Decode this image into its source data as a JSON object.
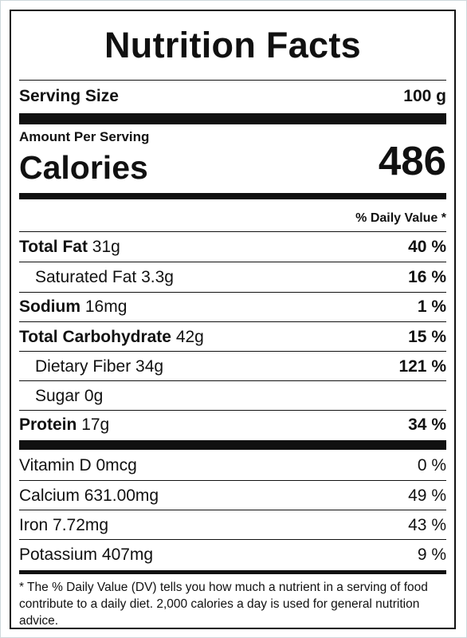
{
  "title": "Nutrition Facts",
  "serving": {
    "label": "Serving Size",
    "value": "100 g"
  },
  "amount_per_serving": "Amount Per Serving",
  "calories": {
    "label": "Calories",
    "value": "486"
  },
  "daily_value_header": "% Daily Value *",
  "nutrients": [
    {
      "name": "Total Fat",
      "amount": "31g",
      "dv": "40 %"
    },
    {
      "name": "Saturated Fat",
      "amount": "3.3g",
      "dv": "16 %"
    },
    {
      "name": "Sodium",
      "amount": "16mg",
      "dv": "1 %"
    },
    {
      "name": "Total Carbohydrate",
      "amount": "42g",
      "dv": "15 %"
    },
    {
      "name": "Dietary Fiber",
      "amount": "34g",
      "dv": "121 %"
    },
    {
      "name": "Sugar",
      "amount": "0g",
      "dv": ""
    },
    {
      "name": "Protein",
      "amount": "17g",
      "dv": "34 %"
    }
  ],
  "vitamins": [
    {
      "name": "Vitamin D",
      "amount": "0mcg",
      "dv": "0 %"
    },
    {
      "name": "Calcium",
      "amount": "631.00mg",
      "dv": "49 %"
    },
    {
      "name": "Iron",
      "amount": "7.72mg",
      "dv": "43 %"
    },
    {
      "name": "Potassium",
      "amount": "407mg",
      "dv": "9 %"
    }
  ],
  "footnote": "* The % Daily Value (DV) tells you how much a nutrient in a serving of food contribute to a daily diet. 2,000 calories a day is used for general nutrition advice."
}
